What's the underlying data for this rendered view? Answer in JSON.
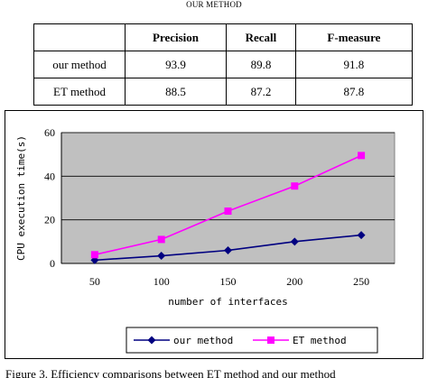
{
  "table": {
    "caption": "OUR METHOD",
    "columns": [
      "",
      "Precision",
      "Recall",
      "F-measure"
    ],
    "rows": [
      {
        "label": "our method",
        "precision": "93.9",
        "recall": "89.8",
        "fmeasure": "91.8"
      },
      {
        "label": "ET method",
        "precision": "88.5",
        "recall": "87.2",
        "fmeasure": "87.8"
      }
    ]
  },
  "chart_data": {
    "type": "line",
    "xlabel": "number of interfaces",
    "ylabel": "CPU execution time(s)",
    "categories": [
      "50",
      "100",
      "150",
      "200",
      "250"
    ],
    "x": [
      50,
      100,
      150,
      200,
      250
    ],
    "ylim": [
      0,
      60
    ],
    "yticks": [
      "0",
      "20",
      "40",
      "60"
    ],
    "grid": "horizontal",
    "legend_position": "bottom",
    "series": [
      {
        "name": "our method",
        "values": [
          1.5,
          3.5,
          6,
          10,
          13
        ],
        "color": "#000080",
        "marker": "diamond"
      },
      {
        "name": "ET method",
        "values": [
          4,
          11,
          24,
          35.5,
          49.5
        ],
        "color": "#ff00ff",
        "marker": "square"
      }
    ]
  },
  "figure": {
    "caption": "Figure 3.   Efficiency comparisons between ET method and our method"
  },
  "colors": {
    "plot_background": "#c0c0c0",
    "our_method": "#000080",
    "et_method": "#ff00ff"
  }
}
